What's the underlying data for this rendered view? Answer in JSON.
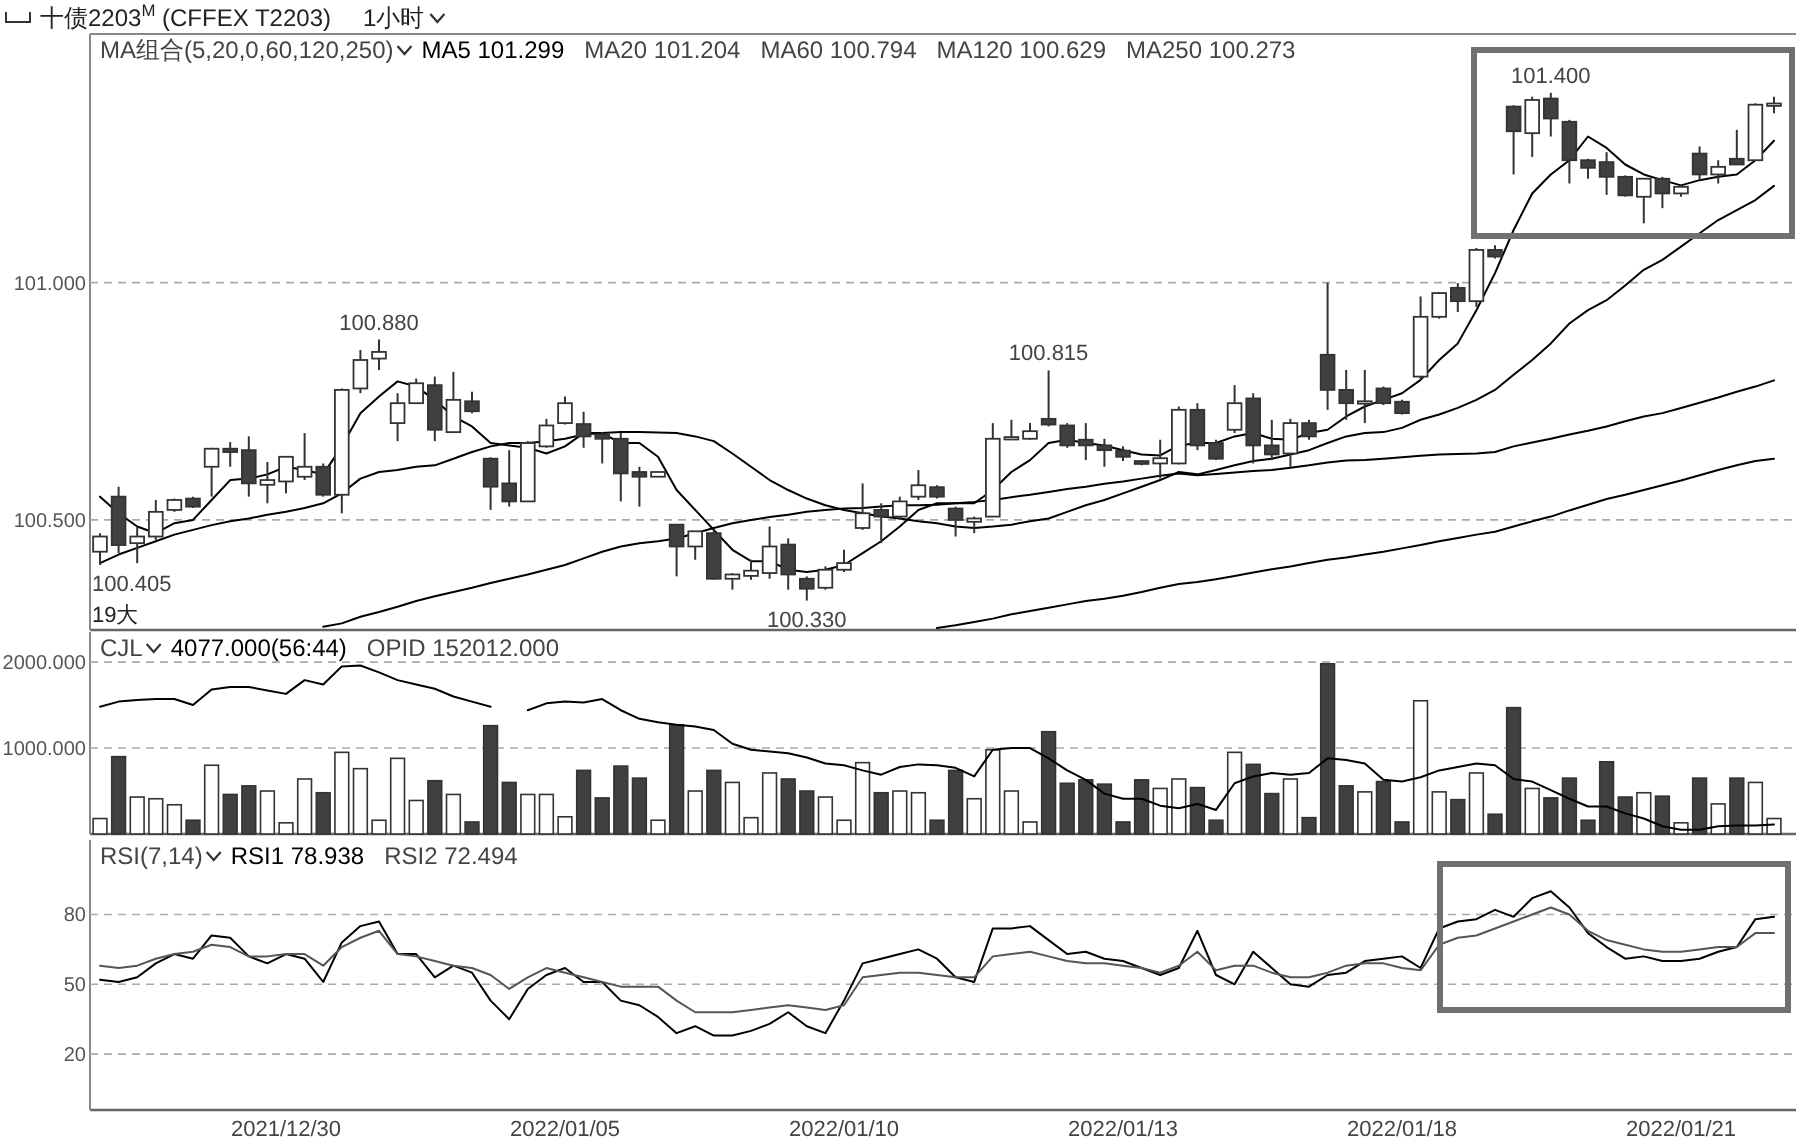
{
  "chart_data": [
    {
      "type": "candlestick",
      "title": "十债2203$^{M}$ (CFFEX T2203)",
      "subtitle": "1小时",
      "categories": [
        null,
        null,
        null,
        null,
        null,
        null,
        null,
        null,
        null,
        null,
        null,
        null,
        null,
        null,
        null,
        null,
        null,
        null,
        null,
        null,
        null,
        null,
        null,
        null,
        null,
        null,
        null,
        null,
        null,
        null,
        null,
        null,
        null,
        null,
        null,
        null,
        null,
        null,
        null,
        null,
        null,
        null,
        null,
        null,
        null,
        null,
        null,
        null,
        null,
        null,
        null,
        null,
        null,
        null,
        null,
        null,
        null,
        null,
        null,
        null,
        null,
        null,
        null,
        null,
        null,
        null,
        null,
        null,
        null,
        null,
        null,
        null,
        null,
        null,
        null,
        null,
        null,
        null,
        null,
        null,
        null,
        null,
        null,
        null,
        null,
        null,
        null,
        null,
        null,
        null,
        null
      ],
      "ohlc": [
        [
          100.433,
          100.472,
          100.405,
          100.465
        ],
        [
          100.549,
          100.57,
          100.43,
          100.447
        ],
        [
          100.451,
          100.486,
          100.409,
          100.465
        ],
        [
          100.465,
          100.542,
          100.458,
          100.517
        ],
        [
          100.521,
          100.545,
          100.517,
          100.542
        ],
        [
          100.545,
          100.549,
          100.525,
          100.528
        ],
        [
          100.612,
          100.652,
          100.549,
          100.65
        ],
        [
          100.65,
          100.664,
          100.612,
          100.643
        ],
        [
          100.647,
          100.676,
          100.549,
          100.577
        ],
        [
          100.574,
          100.622,
          100.535,
          100.584
        ],
        [
          100.581,
          100.633,
          100.556,
          100.633
        ],
        [
          100.591,
          100.683,
          100.584,
          100.612
        ],
        [
          100.612,
          100.619,
          100.549,
          100.553
        ],
        [
          100.553,
          100.777,
          100.514,
          100.774
        ],
        [
          100.777,
          100.858,
          100.767,
          100.837
        ],
        [
          100.84,
          100.88,
          100.816,
          100.854
        ],
        [
          100.704,
          100.767,
          100.666,
          100.746
        ],
        [
          100.746,
          100.798,
          100.746,
          100.788
        ],
        [
          100.784,
          100.802,
          100.666,
          100.69
        ],
        [
          100.685,
          100.812,
          100.683,
          100.753
        ],
        [
          100.75,
          100.77,
          100.725,
          100.729
        ],
        [
          100.629,
          100.632,
          100.521,
          100.57
        ],
        [
          100.577,
          100.647,
          100.528,
          100.539
        ],
        [
          100.539,
          100.666,
          100.539,
          100.662
        ],
        [
          100.655,
          100.713,
          100.652,
          100.699
        ],
        [
          100.704,
          100.76,
          100.701,
          100.746
        ],
        [
          100.702,
          100.728,
          100.652,
          100.676
        ],
        [
          100.68,
          100.685,
          100.619,
          100.671
        ],
        [
          100.671,
          100.683,
          100.539,
          100.598
        ],
        [
          100.601,
          100.612,
          100.528,
          100.591
        ],
        [
          100.591,
          100.601,
          100.591,
          100.601
        ],
        [
          100.49,
          100.49,
          100.381,
          100.444
        ],
        [
          100.444,
          100.476,
          100.416,
          100.476
        ],
        [
          100.472,
          100.479,
          100.374,
          100.376
        ],
        [
          100.376,
          100.388,
          100.353,
          100.385
        ],
        [
          100.382,
          100.416,
          100.374,
          100.393
        ],
        [
          100.388,
          100.486,
          100.376,
          100.444
        ],
        [
          100.448,
          100.461,
          100.353,
          100.385
        ],
        [
          100.376,
          100.381,
          100.33,
          100.355
        ],
        [
          100.357,
          100.402,
          100.353,
          100.395
        ],
        [
          100.395,
          100.437,
          100.39,
          100.409
        ],
        [
          100.483,
          100.577,
          100.479,
          100.514
        ],
        [
          100.521,
          100.535,
          100.451,
          100.507
        ],
        [
          100.507,
          100.549,
          100.5,
          100.539
        ],
        [
          100.549,
          100.605,
          100.542,
          100.573
        ],
        [
          100.569,
          100.573,
          100.545,
          100.549
        ],
        [
          100.524,
          100.528,
          100.465,
          100.5
        ],
        [
          100.496,
          100.507,
          100.472,
          100.503
        ],
        [
          100.507,
          100.704,
          100.507,
          100.671
        ],
        [
          100.671,
          100.711,
          100.669,
          100.673
        ],
        [
          100.671,
          100.704,
          100.669,
          100.687
        ],
        [
          100.713,
          100.815,
          100.697,
          100.701
        ],
        [
          100.699,
          100.704,
          100.652,
          100.657
        ],
        [
          100.669,
          100.704,
          100.626,
          100.657
        ],
        [
          100.657,
          100.671,
          100.612,
          100.647
        ],
        [
          100.646,
          100.655,
          100.624,
          100.633
        ],
        [
          100.624,
          100.626,
          100.615,
          100.618
        ],
        [
          100.619,
          100.669,
          100.587,
          100.63
        ],
        [
          100.619,
          100.739,
          100.617,
          100.732
        ],
        [
          100.732,
          100.746,
          100.647,
          100.657
        ],
        [
          100.662,
          100.669,
          100.626,
          100.629
        ],
        [
          100.69,
          100.784,
          100.683,
          100.746
        ],
        [
          100.756,
          100.767,
          100.619,
          100.657
        ],
        [
          100.657,
          100.711,
          100.626,
          100.638
        ],
        [
          100.64,
          100.713,
          100.612,
          100.704
        ],
        [
          100.704,
          100.711,
          100.669,
          100.676
        ],
        [
          100.848,
          101.0,
          100.732,
          100.774
        ],
        [
          100.774,
          100.816,
          100.711,
          100.746
        ],
        [
          100.746,
          100.816,
          100.704,
          100.749
        ],
        [
          100.777,
          100.781,
          100.742,
          100.746
        ],
        [
          100.749,
          100.753,
          100.722,
          100.725
        ],
        [
          100.802,
          100.971,
          100.795,
          100.928
        ],
        [
          100.928,
          100.98,
          100.924,
          100.978
        ],
        [
          100.989,
          100.999,
          100.938,
          100.961
        ],
        [
          100.961,
          101.073,
          100.949,
          101.069
        ],
        [
          101.069,
          101.079,
          101.051,
          101.055
        ],
        [
          101.371,
          101.374,
          101.228,
          101.319
        ],
        [
          101.315,
          101.392,
          101.265,
          101.385
        ],
        [
          101.388,
          101.4,
          101.308,
          101.346
        ],
        [
          101.339,
          101.343,
          101.209,
          101.258
        ],
        [
          101.258,
          101.261,
          101.219,
          101.242
        ],
        [
          101.254,
          101.275,
          101.185,
          101.223
        ],
        [
          101.223,
          101.226,
          101.181,
          101.184
        ],
        [
          101.181,
          101.219,
          101.125,
          101.219
        ],
        [
          101.219,
          101.223,
          101.157,
          101.188
        ],
        [
          101.188,
          101.205,
          101.181,
          101.202
        ],
        [
          101.272,
          101.287,
          101.216,
          101.228
        ],
        [
          101.228,
          101.258,
          101.209,
          101.244
        ],
        [
          101.261,
          101.322,
          101.249,
          101.249
        ],
        [
          101.258,
          101.378,
          101.256,
          101.375
        ],
        [
          101.375,
          101.392,
          101.357,
          101.375
        ]
      ],
      "colors": [
        "#ffffff",
        "#404040",
        "#ffffff",
        "#ffffff",
        "#ffffff",
        "#404040",
        "#ffffff",
        "#404040",
        "#404040",
        "#ffffff",
        "#ffffff",
        "#ffffff",
        "#404040",
        "#ffffff",
        "#ffffff",
        "#ffffff",
        "#ffffff",
        "#ffffff",
        "#404040",
        "#ffffff",
        "#404040",
        "#404040",
        "#404040",
        "#ffffff",
        "#ffffff",
        "#ffffff",
        "#404040",
        "#404040",
        "#404040",
        "#404040",
        "#ffffff",
        "#404040",
        "#ffffff",
        "#404040",
        "#ffffff",
        "#ffffff",
        "#ffffff",
        "#404040",
        "#404040",
        "#ffffff",
        "#ffffff",
        "#ffffff",
        "#404040",
        "#ffffff",
        "#ffffff",
        "#404040",
        "#404040",
        "#ffffff",
        "#ffffff",
        "#ffffff",
        "#ffffff",
        "#404040",
        "#404040",
        "#404040",
        "#404040",
        "#404040",
        "#404040",
        "#ffffff",
        "#ffffff",
        "#404040",
        "#404040",
        "#ffffff",
        "#404040",
        "#404040",
        "#ffffff",
        "#404040",
        "#404040",
        "#404040",
        "#ffffff",
        "#404040",
        "#404040",
        "#ffffff",
        "#ffffff",
        "#404040",
        "#ffffff",
        "#404040",
        "#404040",
        "#ffffff",
        "#404040",
        "#404040",
        "#404040",
        "#404040",
        "#404040",
        "#ffffff",
        "#404040",
        "#ffffff",
        "#404040",
        "#ffffff",
        "#404040",
        "#ffffff",
        "#ffffff"
      ],
      "series": [
        {
          "type": "line",
          "color": "#000000",
          "values": [
            100.549,
            100.514,
            100.486,
            100.472,
            100.493,
            100.5,
            100.542,
            100.584,
            100.587,
            100.596,
            100.612,
            100.605,
            100.596,
            100.655,
            100.725,
            100.76,
            100.792,
            100.781,
            100.753,
            100.718,
            100.697,
            100.662,
            100.657,
            100.652,
            100.64,
            100.655,
            100.683,
            100.683,
            100.662,
            100.662,
            100.633,
            100.563,
            100.521,
            100.479,
            100.437,
            100.413,
            100.413,
            100.395,
            100.39,
            100.395,
            100.405,
            100.43,
            100.455,
            100.486,
            100.521,
            100.535,
            100.535,
            100.535,
            100.563,
            100.601,
            100.626,
            100.662,
            100.669,
            100.662,
            100.657,
            100.647,
            100.638,
            100.636,
            100.657,
            100.662,
            100.662,
            100.676,
            100.683,
            100.671,
            100.669,
            100.683,
            100.69,
            100.718,
            100.739,
            100.753,
            100.767,
            100.795,
            100.837,
            100.872,
            100.942,
            101.02,
            101.111,
            101.188,
            101.228,
            101.258,
            101.308,
            101.284,
            101.249,
            101.228,
            101.216,
            101.205,
            101.216,
            101.223,
            101.228,
            101.258,
            101.299
          ]
        },
        {
          "type": "line",
          "color": "#000000",
          "values": [
            100.409,
            100.427,
            100.441,
            100.455,
            100.469,
            100.479,
            100.489,
            100.497,
            100.503,
            100.511,
            100.517,
            100.525,
            100.535,
            100.556,
            100.587,
            100.601,
            100.605,
            100.612,
            100.615,
            100.629,
            100.643,
            100.655,
            100.662,
            100.662,
            100.666,
            100.671,
            100.68,
            100.683,
            100.685,
            100.685,
            100.684,
            100.683,
            100.676,
            100.666,
            100.64,
            100.612,
            100.584,
            100.563,
            100.545,
            100.531,
            100.521,
            100.514,
            100.507,
            100.503,
            100.497,
            100.493,
            100.486,
            100.483,
            100.486,
            100.49,
            100.497,
            100.503,
            100.517,
            100.531,
            100.542,
            100.556,
            100.57,
            100.584,
            100.601,
            100.596,
            100.605,
            100.615,
            100.624,
            100.629,
            100.638,
            100.647,
            100.662,
            100.676,
            100.683,
            100.685,
            100.694,
            100.711,
            100.722,
            100.736,
            100.753,
            100.774,
            100.806,
            100.837,
            100.872,
            100.914,
            100.942,
            100.963,
            100.994,
            101.027,
            101.048,
            101.076,
            101.104,
            101.132,
            101.153,
            101.174,
            101.204
          ]
        },
        {
          "type": "line",
          "color": "#000000",
          "values": [
            null,
            null,
            null,
            null,
            null,
            null,
            null,
            null,
            null,
            null,
            null,
            null,
            100.275,
            100.282,
            100.296,
            100.306,
            100.317,
            100.329,
            100.339,
            100.348,
            100.357,
            100.367,
            100.376,
            100.385,
            100.395,
            100.405,
            100.419,
            100.433,
            100.444,
            100.451,
            100.455,
            100.461,
            100.472,
            100.483,
            100.493,
            100.5,
            100.506,
            100.511,
            100.517,
            100.521,
            100.524,
            100.525,
            100.528,
            100.531,
            100.531,
            100.532,
            100.535,
            100.538,
            100.542,
            100.548,
            100.553,
            100.559,
            100.565,
            100.57,
            100.576,
            100.581,
            100.587,
            100.593,
            100.598,
            100.594,
            100.597,
            100.6,
            100.603,
            100.605,
            100.61,
            100.615,
            100.621,
            100.625,
            100.626,
            100.629,
            100.632,
            100.635,
            100.638,
            100.639,
            100.64,
            100.643,
            100.655,
            100.663,
            100.671,
            100.68,
            100.688,
            100.697,
            100.708,
            100.718,
            100.725,
            100.736,
            100.747,
            100.758,
            100.77,
            100.781,
            100.794
          ]
        },
        {
          "type": "line",
          "color": "#000000",
          "values": [
            null,
            null,
            null,
            null,
            null,
            null,
            null,
            null,
            null,
            null,
            null,
            null,
            null,
            null,
            null,
            null,
            null,
            null,
            null,
            null,
            null,
            null,
            null,
            null,
            null,
            null,
            null,
            null,
            null,
            null,
            null,
            null,
            null,
            null,
            null,
            null,
            null,
            null,
            null,
            null,
            null,
            null,
            null,
            null,
            null,
            100.272,
            100.278,
            100.285,
            100.292,
            100.301,
            100.308,
            100.315,
            100.322,
            100.329,
            100.334,
            100.34,
            100.348,
            100.357,
            100.365,
            100.369,
            100.375,
            100.382,
            100.389,
            100.396,
            100.402,
            100.409,
            100.416,
            100.421,
            100.427,
            100.433,
            100.44,
            100.447,
            100.455,
            100.462,
            100.469,
            100.475,
            100.486,
            100.497,
            100.507,
            100.52,
            100.532,
            100.544,
            100.553,
            100.563,
            100.573,
            100.583,
            100.594,
            100.605,
            100.615,
            100.624,
            100.629
          ]
        }
      ],
      "ylim": [
        100.268,
        101.524
      ],
      "yticks": [
        {
          "value": 100.5,
          "label": "100.500"
        },
        {
          "value": 101,
          "label": "101.000"
        }
      ],
      "grid": "y",
      "tick_labels": "y",
      "annotations": [
        "MA组合(5,20,0,60,120,250)",
        "MA5 101.299",
        "MA20 101.204",
        "MA60 100.794",
        "MA120 100.629",
        "MA250 100.273",
        {
          "text": "100.405",
          "y": 100.405
        },
        {
          "text": "100.880",
          "y": 100.88
        },
        {
          "text": "100.330",
          "y": 100.33
        },
        {
          "text": "100.815",
          "y": 100.815
        },
        {
          "text": "101.400",
          "y": 101.4
        },
        "19大"
      ]
    },
    {
      "type": "bar",
      "categories": [
        null,
        null,
        null,
        null,
        null,
        null,
        null,
        null,
        null,
        null,
        null,
        null,
        null,
        null,
        null,
        null,
        null,
        null,
        null,
        null,
        null,
        null,
        null,
        null,
        null,
        null,
        null,
        null,
        null,
        null,
        null,
        null,
        null,
        null,
        null,
        null,
        null,
        null,
        null,
        null,
        null,
        null,
        null,
        null,
        null,
        null,
        null,
        null,
        null,
        null,
        null,
        null,
        null,
        null,
        null,
        null,
        null,
        null,
        null,
        null,
        null,
        null,
        null,
        null,
        null,
        null,
        null,
        null,
        null,
        null,
        null,
        null,
        null,
        null,
        null,
        null,
        null,
        null,
        null,
        null,
        null,
        null,
        null,
        null,
        null,
        null,
        null,
        null,
        null,
        null,
        null
      ],
      "series": [
        {
          "type": "bar",
          "colors": [
            "#ffffff",
            "#404040",
            "#ffffff",
            "#ffffff",
            "#ffffff",
            "#404040",
            "#ffffff",
            "#404040",
            "#404040",
            "#ffffff",
            "#ffffff",
            "#ffffff",
            "#404040",
            "#ffffff",
            "#ffffff",
            "#ffffff",
            "#ffffff",
            "#ffffff",
            "#404040",
            "#ffffff",
            "#404040",
            "#404040",
            "#404040",
            "#ffffff",
            "#ffffff",
            "#ffffff",
            "#404040",
            "#404040",
            "#404040",
            "#404040",
            "#ffffff",
            "#404040",
            "#ffffff",
            "#404040",
            "#ffffff",
            "#ffffff",
            "#ffffff",
            "#404040",
            "#404040",
            "#ffffff",
            "#ffffff",
            "#ffffff",
            "#404040",
            "#ffffff",
            "#ffffff",
            "#404040",
            "#404040",
            "#ffffff",
            "#ffffff",
            "#ffffff",
            "#ffffff",
            "#404040",
            "#404040",
            "#404040",
            "#404040",
            "#404040",
            "#404040",
            "#ffffff",
            "#ffffff",
            "#404040",
            "#404040",
            "#ffffff",
            "#404040",
            "#404040",
            "#ffffff",
            "#404040",
            "#404040",
            "#404040",
            "#ffffff",
            "#404040",
            "#404040",
            "#ffffff",
            "#ffffff",
            "#404040",
            "#ffffff",
            "#404040",
            "#404040",
            "#ffffff",
            "#404040",
            "#404040",
            "#404040",
            "#404040",
            "#404040",
            "#ffffff",
            "#404040",
            "#ffffff",
            "#404040",
            "#ffffff",
            "#404040",
            "#ffffff",
            "#ffffff"
          ],
          "values": [
            180,
            900,
            430,
            410,
            340,
            160,
            800,
            460,
            560,
            500,
            130,
            640,
            480,
            950,
            760,
            160,
            880,
            390,
            620,
            460,
            140,
            1260,
            600,
            460,
            460,
            200,
            740,
            420,
            790,
            650,
            160,
            1270,
            500,
            740,
            600,
            190,
            710,
            640,
            500,
            430,
            160,
            830,
            480,
            500,
            480,
            160,
            740,
            410,
            980,
            500,
            140,
            1190,
            590,
            630,
            580,
            140,
            630,
            530,
            640,
            540,
            160,
            950,
            810,
            470,
            640,
            190,
            1980,
            560,
            490,
            610,
            140,
            1550,
            490,
            400,
            710,
            230,
            1470,
            530,
            420,
            650,
            160,
            840,
            430,
            480,
            440,
            130,
            650,
            350,
            650,
            600,
            180
          ]
        },
        {
          "type": "line",
          "color": "#000000",
          "values": [
            1480,
            1540,
            1560,
            1570,
            1570,
            1500,
            1680,
            1710,
            1710,
            1670,
            1630,
            1790,
            1740,
            1950,
            1960,
            1880,
            1790,
            1740,
            1690,
            1600,
            1540,
            1480,
            null,
            1440,
            1520,
            1540,
            1530,
            1570,
            1440,
            1340,
            1300,
            1270,
            1250,
            1210,
            1050,
            980,
            960,
            940,
            890,
            820,
            800,
            740,
            690,
            780,
            810,
            800,
            770,
            670,
            980,
            1000,
            1000,
            880,
            740,
            630,
            470,
            410,
            410,
            330,
            300,
            350,
            280,
            590,
            670,
            710,
            690,
            710,
            880,
            860,
            820,
            630,
            610,
            660,
            740,
            780,
            820,
            800,
            640,
            610,
            510,
            410,
            320,
            320,
            240,
            180,
            90,
            50,
            50,
            90,
            100,
            100,
            110
          ]
        }
      ],
      "ylim": [
        0,
        2350
      ],
      "yticks": [
        {
          "value": 1000,
          "label": "1000.000"
        },
        {
          "value": 2000,
          "label": "2000.000"
        }
      ],
      "grid": "y",
      "tick_labels": "y",
      "annotations": [
        "CJL",
        "4077.000(56:44)",
        "OPID 152012.000"
      ]
    },
    {
      "type": "line",
      "categories": [
        null,
        null,
        null,
        null,
        null,
        null,
        null,
        null,
        null,
        null,
        "2021/12/30",
        null,
        null,
        null,
        null,
        null,
        null,
        null,
        null,
        null,
        null,
        null,
        null,
        null,
        null,
        "2022/01/05",
        null,
        null,
        null,
        null,
        null,
        null,
        null,
        null,
        null,
        null,
        null,
        null,
        null,
        null,
        "2022/01/10",
        null,
        null,
        null,
        null,
        null,
        null,
        null,
        null,
        null,
        null,
        null,
        null,
        null,
        null,
        "2022/01/13",
        null,
        null,
        null,
        null,
        null,
        null,
        null,
        null,
        null,
        null,
        null,
        null,
        null,
        null,
        "2022/01/18",
        null,
        null,
        null,
        null,
        null,
        null,
        null,
        null,
        null,
        null,
        null,
        null,
        null,
        null,
        "2022/01/21",
        null,
        null,
        null,
        null,
        null
      ],
      "series": [
        {
          "color": "#000000",
          "values": [
            52,
            51,
            53,
            59,
            63,
            61,
            71,
            70,
            62,
            59,
            63,
            61,
            51,
            68,
            75,
            77,
            63,
            63,
            53,
            58,
            55,
            43,
            35,
            48,
            54,
            57,
            51,
            51,
            43,
            41,
            36,
            29,
            32,
            28,
            28,
            30,
            33,
            38,
            32,
            29,
            43,
            59,
            61,
            63,
            65,
            61,
            53,
            51,
            74,
            74,
            75,
            69,
            63,
            64,
            61,
            60,
            57,
            54,
            57,
            73,
            54,
            50,
            64,
            57,
            50,
            49,
            54,
            55,
            60,
            61,
            62,
            57,
            74,
            77,
            78,
            82,
            79,
            87,
            90,
            83,
            72,
            66,
            61,
            62,
            60,
            60,
            61,
            64,
            66,
            78,
            79
          ]
        },
        {
          "color": "#555555",
          "values": [
            58,
            57,
            58,
            61,
            63,
            64,
            67,
            66,
            62,
            62,
            63,
            63,
            58,
            66,
            70,
            73,
            63,
            62,
            60,
            58,
            57,
            54,
            48,
            53,
            57,
            55,
            53,
            51,
            49,
            49,
            49,
            43,
            38,
            38,
            38,
            39,
            40,
            41,
            40,
            39,
            41,
            53,
            54,
            55,
            55,
            54,
            53,
            53,
            62,
            63,
            64,
            62,
            60,
            59,
            59,
            58,
            57,
            55,
            58,
            64,
            56,
            58,
            58,
            55,
            53,
            53,
            55,
            58,
            59,
            59,
            57,
            56,
            67,
            70,
            71,
            74,
            77,
            80,
            83,
            80,
            73,
            69,
            67,
            65,
            64,
            64,
            65,
            66,
            66,
            72,
            72
          ]
        }
      ],
      "ylim": [
        -4,
        112
      ],
      "yticks": [
        20,
        50,
        80
      ],
      "grid": "y",
      "annotations": [
        "RSI(7,14)",
        "RSI1 78.938",
        "RSI2 72.494"
      ]
    }
  ]
}
